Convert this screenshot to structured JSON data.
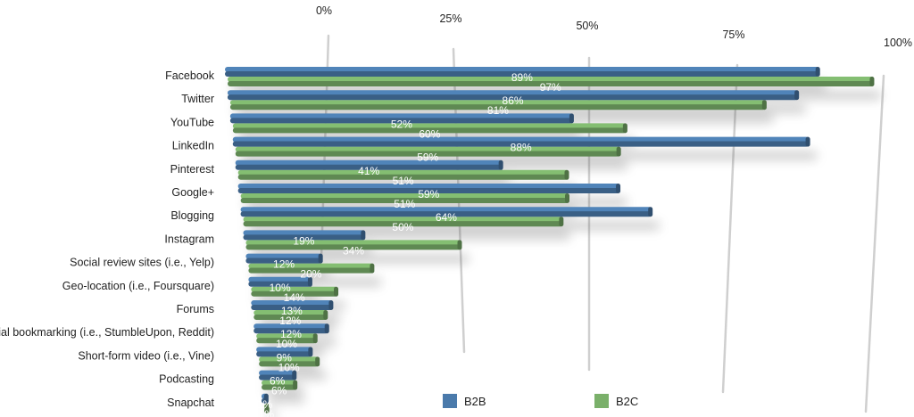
{
  "chart_data": {
    "type": "bar",
    "orientation": "horizontal",
    "style": "3d-perspective",
    "title": "",
    "xlabel": "",
    "ylabel": "",
    "xlim": [
      0,
      100
    ],
    "x_ticks": [
      "0%",
      "25%",
      "50%",
      "75%",
      "100%"
    ],
    "legend_position": "bottom",
    "grid": true,
    "categories": [
      "Facebook",
      "Twitter",
      "YouTube",
      "LinkedIn",
      "Pinterest",
      "Google+",
      "Blogging",
      "Instagram",
      "Social review sites (i.e., Yelp)",
      "Geo-location (i.e., Foursquare)",
      "Forums",
      "Social bookmarking (i.e., StumbleUpon, Reddit)",
      "Short-form video (i.e., Vine)",
      "Podcasting",
      "Snapchat"
    ],
    "series": [
      {
        "name": "B2B",
        "color": "#4a7aab",
        "values": [
          89,
          86,
          52,
          88,
          41,
          59,
          64,
          19,
          12,
          10,
          13,
          12,
          9,
          6,
          1
        ],
        "labels": [
          "89%",
          "86%",
          "52%",
          "88%",
          "41%",
          "59%",
          "64%",
          "19%",
          "12%",
          "10%",
          "13%",
          "12%",
          "9%",
          "6%",
          "1%"
        ]
      },
      {
        "name": "B2C",
        "color": "#7ab06a",
        "values": [
          97,
          81,
          60,
          59,
          51,
          51,
          50,
          34,
          20,
          14,
          12,
          10,
          10,
          6,
          1
        ],
        "labels": [
          "97%",
          "81%",
          "60%",
          "59%",
          "51%",
          "51%",
          "50%",
          "34%",
          "20%",
          "14%",
          "12%",
          "10%",
          "10%",
          "6%",
          "1%"
        ]
      }
    ]
  }
}
